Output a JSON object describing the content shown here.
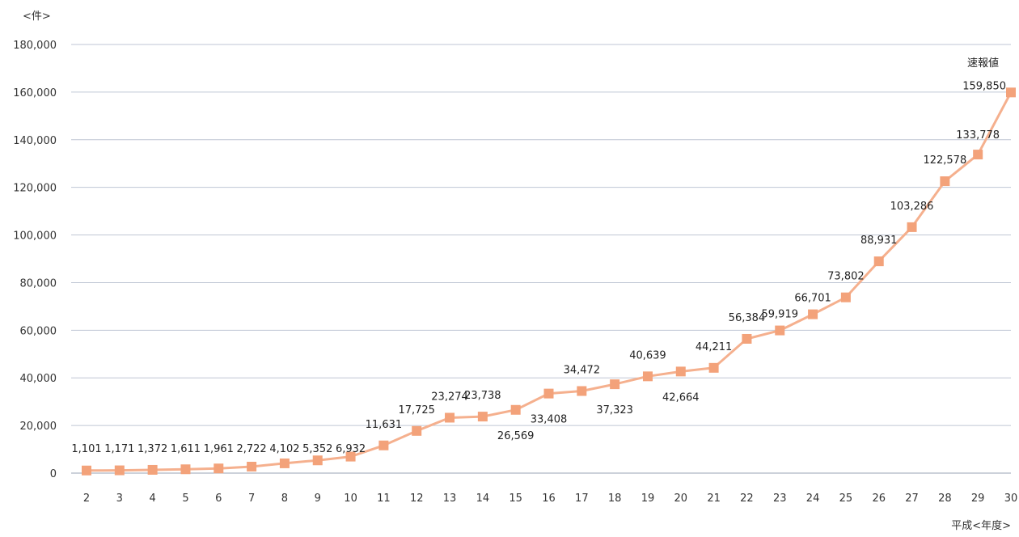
{
  "chart_data": {
    "type": "line",
    "y_unit_label": "<件>",
    "x_unit_label": "平成<年度>",
    "x": [
      "2",
      "3",
      "4",
      "5",
      "6",
      "7",
      "8",
      "9",
      "10",
      "11",
      "12",
      "13",
      "14",
      "15",
      "16",
      "17",
      "18",
      "19",
      "20",
      "21",
      "22",
      "23",
      "24",
      "25",
      "26",
      "27",
      "28",
      "29",
      "30"
    ],
    "values": [
      1101,
      1171,
      1372,
      1611,
      1961,
      2722,
      4102,
      5352,
      6932,
      11631,
      17725,
      23274,
      23738,
      26569,
      33408,
      34472,
      37323,
      40639,
      42664,
      44211,
      56384,
      59919,
      66701,
      73802,
      88931,
      103286,
      122578,
      133778,
      159850
    ],
    "data_labels": [
      "1,101",
      "1,171",
      "1,372",
      "1,611",
      "1,961",
      "2,722",
      "4,102",
      "5,352",
      "6,932",
      "11,631",
      "17,725",
      "23,274",
      "23,738",
      "26,569",
      "33,408",
      "34,472",
      "37,323",
      "40,639",
      "42,664",
      "44,211",
      "56,384",
      "59,919",
      "66,701",
      "73,802",
      "88,931",
      "103,286",
      "122,578",
      "133,778",
      "159,850"
    ],
    "annotation": "速報値",
    "ylim": [
      0,
      180000
    ],
    "yticks": [
      0,
      20000,
      40000,
      60000,
      80000,
      100000,
      120000,
      140000,
      160000,
      180000
    ],
    "ytick_labels": [
      "0",
      "20,000",
      "40,000",
      "60,000",
      "80,000",
      "100,000",
      "120,000",
      "140,000",
      "160,000",
      "180,000"
    ],
    "grid": true,
    "colors": {
      "line": "#f5b08e",
      "marker": "#f3a27a",
      "grid": "#bfc6d4",
      "axis": "#9aa3b5"
    }
  }
}
